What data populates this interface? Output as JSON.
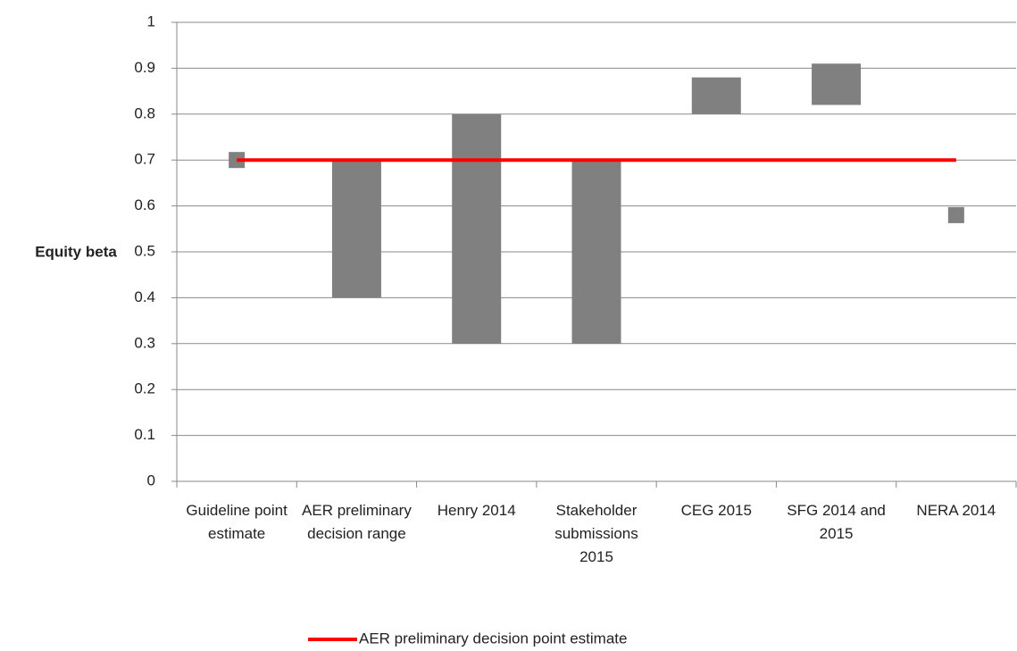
{
  "chart_data": {
    "type": "floating_bar",
    "y_label": "Equity beta",
    "categories": [
      "Guideline point estimate",
      "AER preliminary decision range",
      "Henry 2014",
      "Stakeholder submissions 2015",
      "CEG 2015",
      "SFG 2014 and 2015",
      "NERA 2014"
    ],
    "ranges": [
      null,
      [
        0.4,
        0.7
      ],
      [
        0.3,
        0.8
      ],
      [
        0.3,
        0.7
      ],
      [
        0.8,
        0.88
      ],
      [
        0.82,
        0.91
      ],
      null
    ],
    "points": [
      0.7,
      null,
      null,
      null,
      null,
      null,
      0.58
    ],
    "color": "#808080",
    "series": [
      {
        "name": "AER preliminary decision point estimate",
        "color": "#ff0000",
        "values": [
          0.7,
          0.7,
          0.7,
          0.7,
          0.7,
          0.7,
          0.7
        ]
      }
    ],
    "ylim": [
      0,
      1
    ],
    "yticks": [
      0,
      0.1,
      0.2,
      0.3,
      0.4,
      0.5,
      0.6,
      0.7,
      0.8,
      0.9,
      1
    ],
    "grid": true,
    "legend": "bottom"
  }
}
